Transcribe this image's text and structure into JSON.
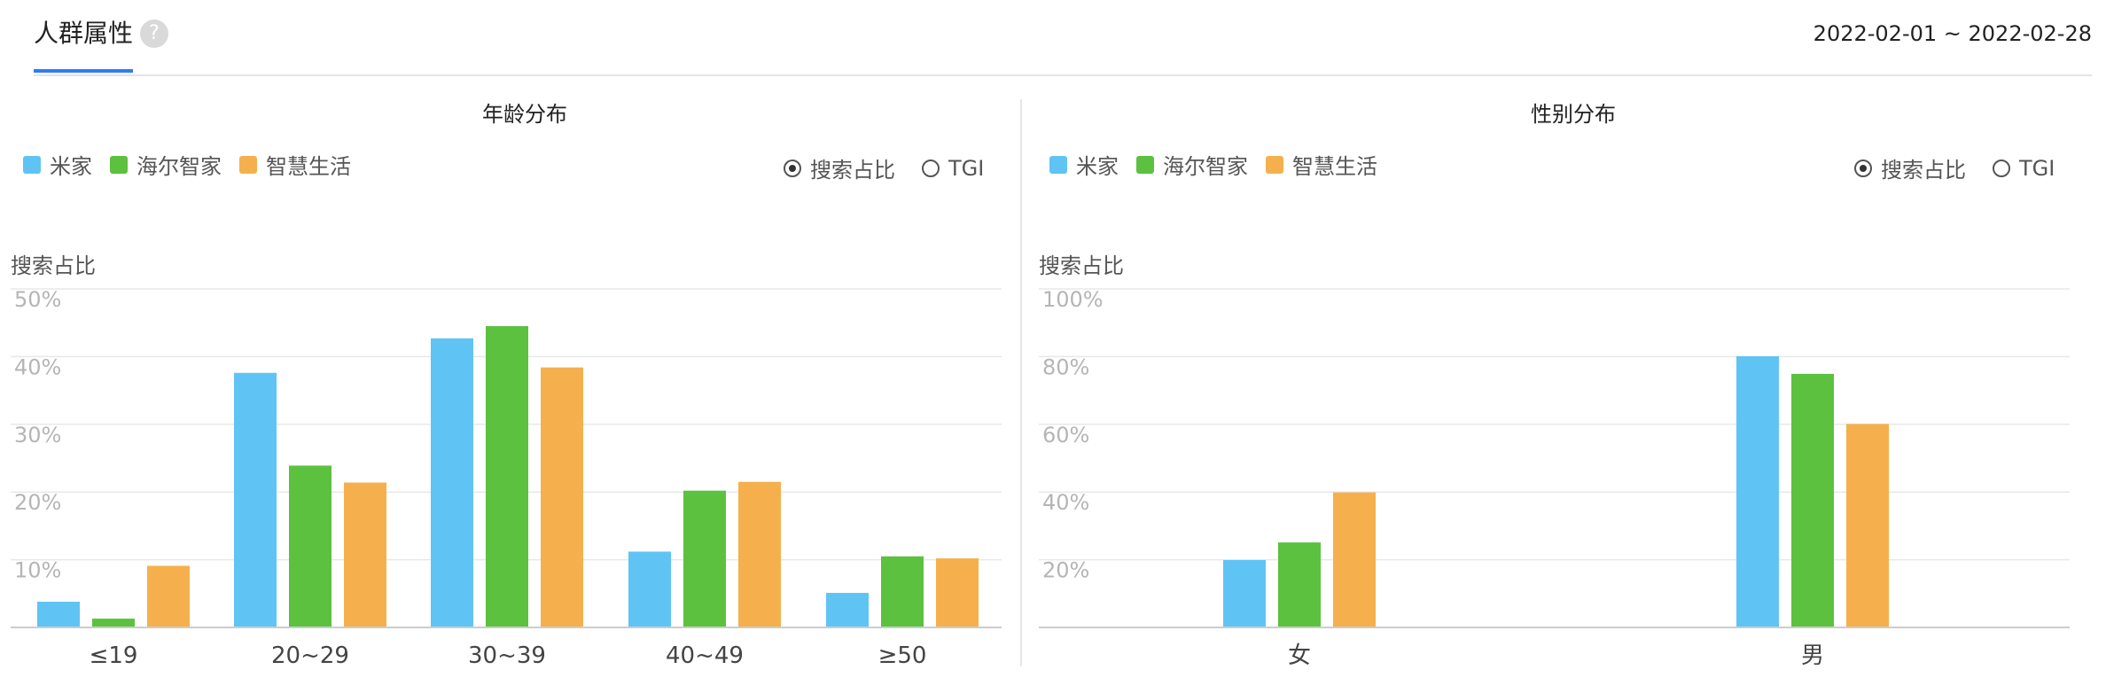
{
  "header": {
    "tab_title": "人群属性",
    "help_icon_glyph": "?",
    "date_range": "2022-02-01 ~ 2022-02-28"
  },
  "colors": {
    "series": [
      "#5fc4f4",
      "#5cc13f",
      "#f5b04d"
    ],
    "accent": "#2f7cf6"
  },
  "radio_options": [
    {
      "label": "搜索占比",
      "checked": true
    },
    {
      "label": "TGI",
      "checked": false
    }
  ],
  "chart_data": [
    {
      "type": "bar",
      "title": "年龄分布",
      "ylabel": "搜索占比",
      "legend_position": "top-left",
      "grid": true,
      "categories": [
        "≤19",
        "20~29",
        "30~39",
        "40~49",
        "≥50"
      ],
      "series": [
        {
          "name": "米家",
          "values": [
            3.8,
            37.6,
            42.7,
            11.2,
            5.1
          ]
        },
        {
          "name": "海尔智家",
          "values": [
            1.3,
            23.9,
            44.5,
            20.2,
            10.5
          ]
        },
        {
          "name": "智慧生活",
          "values": [
            9.1,
            21.4,
            38.4,
            21.5,
            10.2
          ]
        }
      ],
      "ylim": [
        0,
        50
      ],
      "yticks": [
        10,
        20,
        30,
        40,
        50
      ],
      "ytick_labels": [
        "10%",
        "20%",
        "30%",
        "40%",
        "50%"
      ]
    },
    {
      "type": "bar",
      "title": "性别分布",
      "ylabel": "搜索占比",
      "legend_position": "top-left",
      "grid": true,
      "categories": [
        "女",
        "男"
      ],
      "series": [
        {
          "name": "米家",
          "values": [
            19.9,
            80.1
          ]
        },
        {
          "name": "海尔智家",
          "values": [
            25.1,
            74.9
          ]
        },
        {
          "name": "智慧生活",
          "values": [
            39.9,
            60.1
          ]
        }
      ],
      "ylim": [
        0,
        100
      ],
      "yticks": [
        20,
        40,
        60,
        80,
        100
      ],
      "ytick_labels": [
        "20%",
        "40%",
        "60%",
        "80%",
        "100%"
      ]
    }
  ]
}
